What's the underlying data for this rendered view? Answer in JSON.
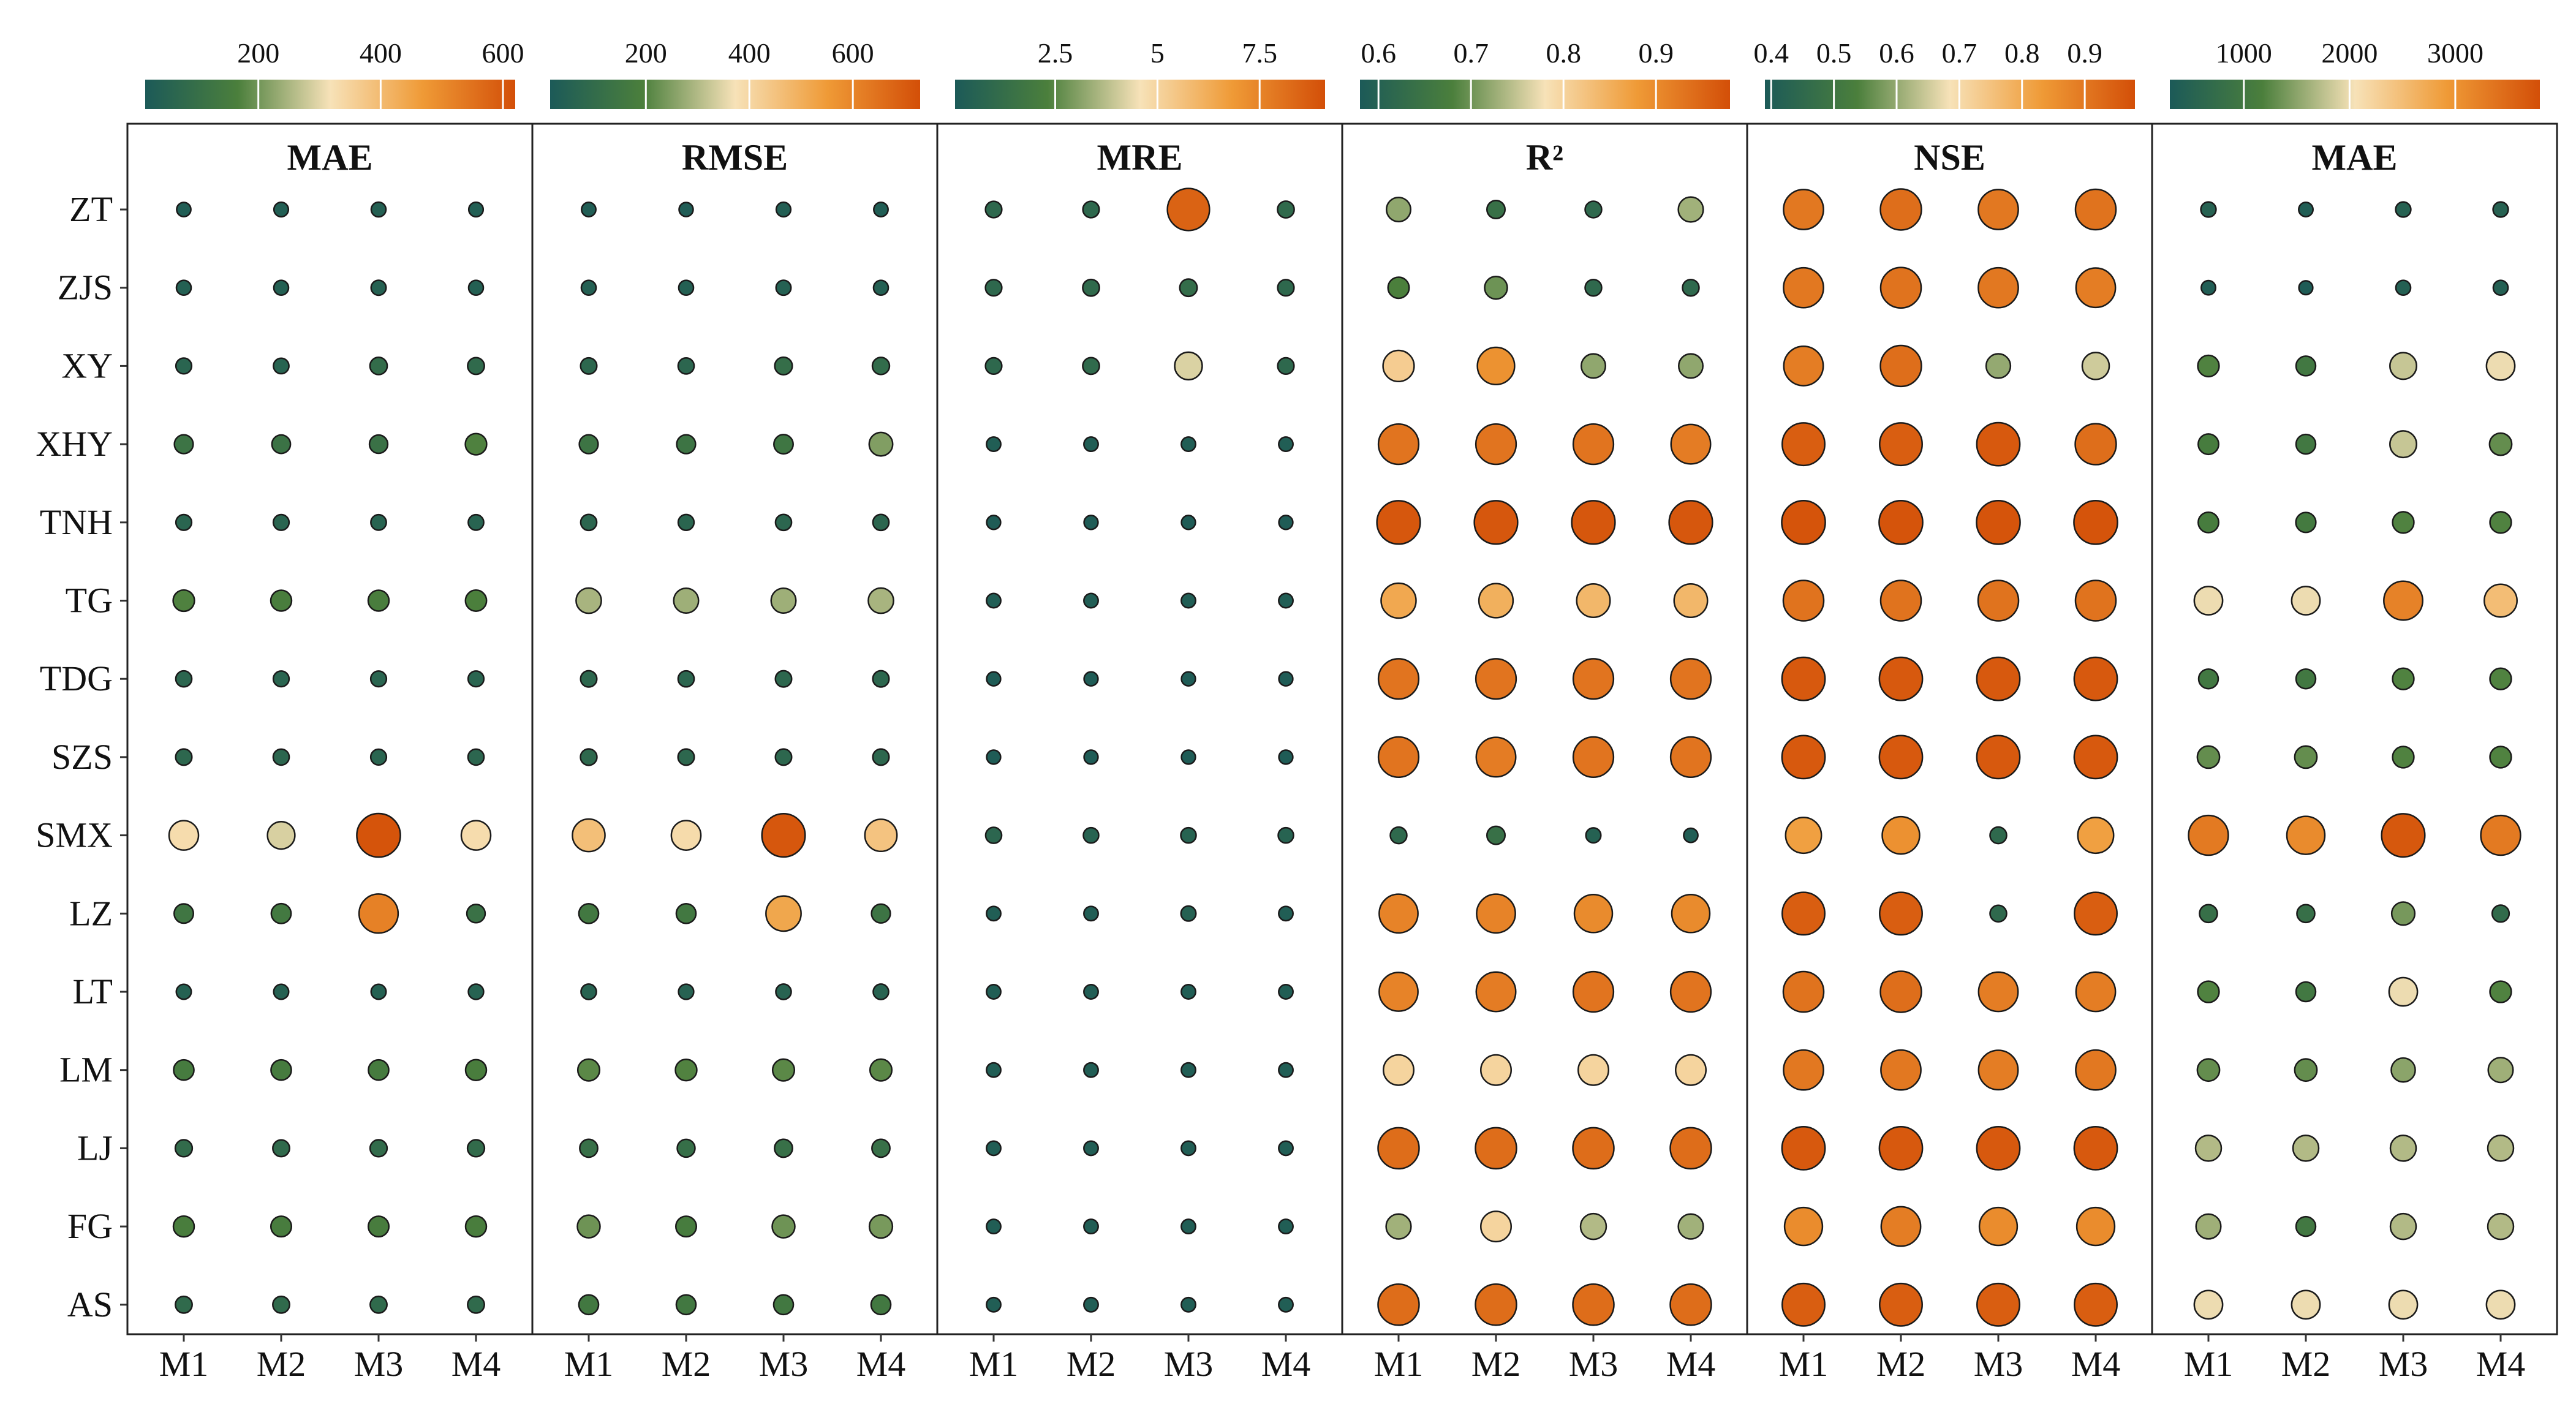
{
  "chart_data": {
    "type": "bubble-heatmap",
    "rows": [
      "ZT",
      "ZJS",
      "XY",
      "XHY",
      "TNH",
      "TG",
      "TDG",
      "SZS",
      "SMX",
      "LZ",
      "LT",
      "LM",
      "LJ",
      "FG",
      "AS"
    ],
    "columns": [
      "M1",
      "M2",
      "M3",
      "M4"
    ],
    "colormap": [
      "#1c5a58",
      "#4b7f3c",
      "#f7e2b8",
      "#ef9a36",
      "#d34f08"
    ],
    "panels": [
      {
        "title": "MAE",
        "range": [
          15,
          620
        ],
        "ticks": [
          200,
          400,
          600
        ],
        "values": [
          [
            30,
            35,
            40,
            35
          ],
          [
            40,
            40,
            45,
            40
          ],
          [
            60,
            55,
            90,
            80
          ],
          [
            120,
            115,
            110,
            170
          ],
          [
            60,
            60,
            55,
            55
          ],
          [
            170,
            160,
            160,
            165
          ],
          [
            65,
            60,
            60,
            60
          ],
          [
            70,
            65,
            60,
            65
          ],
          [
            330,
            290,
            610,
            330
          ],
          [
            130,
            140,
            520,
            110
          ],
          [
            45,
            45,
            45,
            50
          ],
          [
            150,
            150,
            150,
            160
          ],
          [
            85,
            80,
            85,
            85
          ],
          [
            160,
            155,
            155,
            160
          ],
          [
            80,
            80,
            80,
            80
          ]
        ]
      },
      {
        "title": "RMSE",
        "range": [
          15,
          730
        ],
        "ticks": [
          200,
          400,
          600
        ],
        "values": [
          [
            35,
            30,
            40,
            35
          ],
          [
            45,
            45,
            50,
            45
          ],
          [
            80,
            75,
            110,
            100
          ],
          [
            140,
            140,
            150,
            250
          ],
          [
            75,
            70,
            75,
            75
          ],
          [
            290,
            280,
            280,
            290
          ],
          [
            80,
            75,
            80,
            80
          ],
          [
            85,
            80,
            80,
            80
          ],
          [
            460,
            390,
            710,
            450
          ],
          [
            160,
            160,
            520,
            140
          ],
          [
            60,
            55,
            60,
            60
          ],
          [
            210,
            200,
            210,
            210
          ],
          [
            120,
            115,
            120,
            120
          ],
          [
            230,
            180,
            230,
            240
          ],
          [
            160,
            160,
            160,
            160
          ]
        ]
      },
      {
        "title": "MRE",
        "range": [
          0.05,
          9.1
        ],
        "ticks": [
          2.5,
          5.0,
          7.5
        ],
        "values": [
          [
            0.9,
            0.9,
            8.5,
            1.0
          ],
          [
            0.9,
            1.0,
            1.2,
            0.9
          ],
          [
            0.9,
            1.0,
            4.2,
            0.9
          ],
          [
            0.3,
            0.3,
            0.3,
            0.3
          ],
          [
            0.2,
            0.2,
            0.2,
            0.2
          ],
          [
            0.3,
            0.3,
            0.3,
            0.3
          ],
          [
            0.2,
            0.2,
            0.2,
            0.2
          ],
          [
            0.2,
            0.2,
            0.2,
            0.2
          ],
          [
            0.8,
            0.6,
            0.6,
            0.6
          ],
          [
            0.3,
            0.3,
            0.5,
            0.3
          ],
          [
            0.3,
            0.3,
            0.3,
            0.3
          ],
          [
            0.3,
            0.3,
            0.3,
            0.3
          ],
          [
            0.3,
            0.3,
            0.3,
            0.3
          ],
          [
            0.3,
            0.3,
            0.3,
            0.3
          ],
          [
            0.3,
            0.3,
            0.3,
            0.3
          ]
        ]
      },
      {
        "title": "R²",
        "range": [
          0.58,
          0.98
        ],
        "ticks": [
          0.6,
          0.7,
          0.8,
          0.9
        ],
        "values": [
          [
            0.72,
            0.64,
            0.62,
            0.73
          ],
          [
            0.68,
            0.7,
            0.62,
            0.62
          ],
          [
            0.81,
            0.89,
            0.72,
            0.72
          ],
          [
            0.93,
            0.93,
            0.93,
            0.92
          ],
          [
            0.97,
            0.97,
            0.97,
            0.97
          ],
          [
            0.86,
            0.85,
            0.84,
            0.84
          ],
          [
            0.93,
            0.93,
            0.93,
            0.93
          ],
          [
            0.93,
            0.92,
            0.93,
            0.93
          ],
          [
            0.62,
            0.64,
            0.6,
            0.59
          ],
          [
            0.91,
            0.91,
            0.9,
            0.9
          ],
          [
            0.91,
            0.92,
            0.93,
            0.93
          ],
          [
            0.8,
            0.8,
            0.8,
            0.8
          ],
          [
            0.94,
            0.94,
            0.94,
            0.94
          ],
          [
            0.73,
            0.8,
            0.74,
            0.73
          ],
          [
            0.94,
            0.94,
            0.94,
            0.94
          ]
        ]
      },
      {
        "title": "NSE",
        "range": [
          0.39,
          0.98
        ],
        "ticks": [
          0.4,
          0.5,
          0.6,
          0.7,
          0.8,
          0.9
        ],
        "values": [
          [
            0.9,
            0.92,
            0.9,
            0.91
          ],
          [
            0.9,
            0.91,
            0.9,
            0.89
          ],
          [
            0.89,
            0.92,
            0.6,
            0.65
          ],
          [
            0.95,
            0.95,
            0.96,
            0.92
          ],
          [
            0.97,
            0.97,
            0.97,
            0.97
          ],
          [
            0.91,
            0.91,
            0.91,
            0.91
          ],
          [
            0.96,
            0.96,
            0.96,
            0.96
          ],
          [
            0.96,
            0.96,
            0.96,
            0.96
          ],
          [
            0.82,
            0.85,
            0.45,
            0.82
          ],
          [
            0.95,
            0.95,
            0.45,
            0.95
          ],
          [
            0.91,
            0.92,
            0.89,
            0.89
          ],
          [
            0.9,
            0.9,
            0.89,
            0.9
          ],
          [
            0.96,
            0.96,
            0.96,
            0.96
          ],
          [
            0.86,
            0.89,
            0.86,
            0.86
          ],
          [
            0.95,
            0.95,
            0.95,
            0.95
          ]
        ]
      },
      {
        "title": "MAE",
        "range": [
          300,
          3800
        ],
        "ticks": [
          1000,
          2000,
          3000
        ],
        "values": [
          [
            500,
            400,
            500,
            500
          ],
          [
            400,
            350,
            450,
            450
          ],
          [
            1200,
            1000,
            1800,
            2000
          ],
          [
            1100,
            1000,
            1800,
            1300
          ],
          [
            1100,
            1050,
            1200,
            1200
          ],
          [
            2000,
            2000,
            3200,
            2500
          ],
          [
            1000,
            1000,
            1200,
            1200
          ],
          [
            1300,
            1300,
            1200,
            1200
          ],
          [
            3300,
            3100,
            3700,
            3300
          ],
          [
            800,
            800,
            1400,
            700
          ],
          [
            1200,
            1000,
            2000,
            1200
          ],
          [
            1300,
            1300,
            1500,
            1600
          ],
          [
            1700,
            1700,
            1700,
            1700
          ],
          [
            1600,
            1000,
            1700,
            1700
          ],
          [
            2000,
            2000,
            2000,
            2000
          ]
        ]
      }
    ]
  }
}
